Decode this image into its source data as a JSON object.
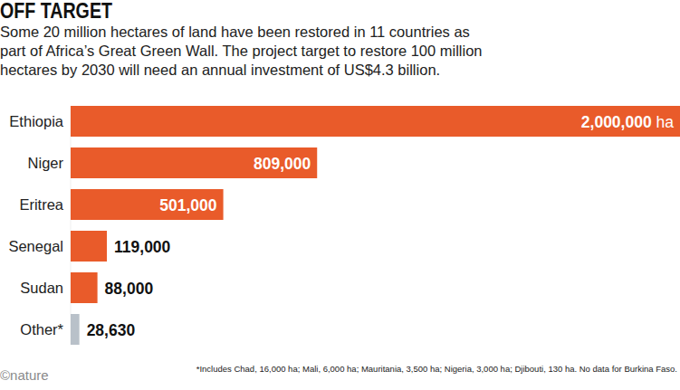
{
  "chart_data": {
    "type": "bar",
    "orientation": "horizontal",
    "title": "OFF TARGET",
    "subtitle": [
      "Some 20 million hectares of land have been restored in 11 countries as",
      "part of Africa’s Great Green Wall. The project target to restore 100 million",
      "hectares by 2030 will need an annual investment of US$4.3 billion."
    ],
    "categories": [
      "Ethiopia",
      "Niger",
      "Eritrea",
      "Senegal",
      "Sudan",
      "Other*"
    ],
    "values": [
      2000000,
      809000,
      501000,
      119000,
      88000,
      28630
    ],
    "value_labels": [
      "2,000,000 ha",
      "809,000",
      "501,000",
      "119,000",
      "88,000",
      "28,630"
    ],
    "colors": [
      "#e95b2a",
      "#e95b2a",
      "#e95b2a",
      "#e95b2a",
      "#e95b2a",
      "#b9c1c9"
    ],
    "xlim": [
      0,
      2000000
    ],
    "data_labels": true,
    "tick_labels": "y",
    "grid": false,
    "footnote": "*Includes Chad, 16,000 ha; Mali, 6,000 ha; Mauritania, 3,500 ha; Nigeria, 3,000 ha; Djibouti, 130 ha. No data for Burkina Faso.",
    "source": "©nature"
  }
}
